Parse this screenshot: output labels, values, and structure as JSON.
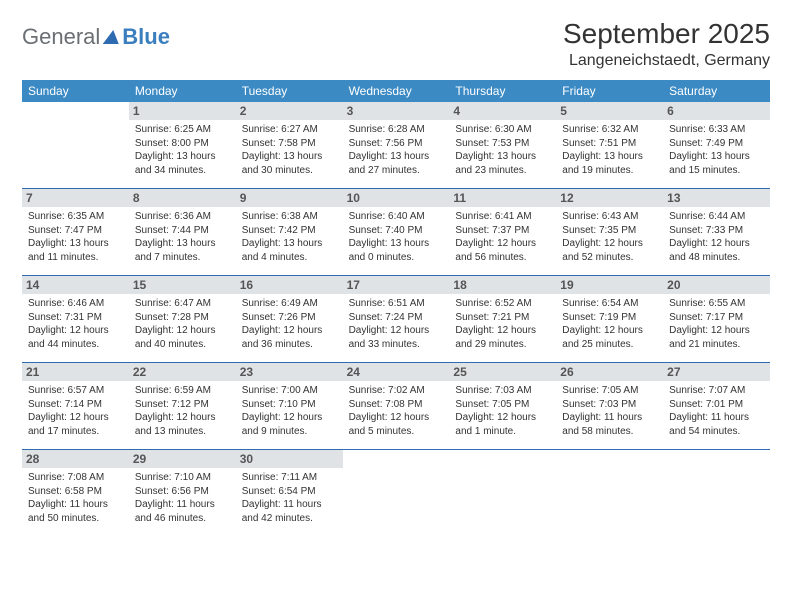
{
  "logo": {
    "general": "General",
    "blue": "Blue"
  },
  "title": "September 2025",
  "location": "Langeneichstaedt, Germany",
  "colors": {
    "header_bg": "#3b8ac4",
    "week_divider": "#2e6bb0",
    "daynum_bg": "#dfe3e6",
    "text": "#333333",
    "logo_gray": "#6b6f73",
    "logo_blue": "#3b7fbf"
  },
  "weekdays": [
    "Sunday",
    "Monday",
    "Tuesday",
    "Wednesday",
    "Thursday",
    "Friday",
    "Saturday"
  ],
  "weeks": [
    [
      null,
      {
        "n": "1",
        "sr": "Sunrise: 6:25 AM",
        "ss": "Sunset: 8:00 PM",
        "dl": "Daylight: 13 hours and 34 minutes."
      },
      {
        "n": "2",
        "sr": "Sunrise: 6:27 AM",
        "ss": "Sunset: 7:58 PM",
        "dl": "Daylight: 13 hours and 30 minutes."
      },
      {
        "n": "3",
        "sr": "Sunrise: 6:28 AM",
        "ss": "Sunset: 7:56 PM",
        "dl": "Daylight: 13 hours and 27 minutes."
      },
      {
        "n": "4",
        "sr": "Sunrise: 6:30 AM",
        "ss": "Sunset: 7:53 PM",
        "dl": "Daylight: 13 hours and 23 minutes."
      },
      {
        "n": "5",
        "sr": "Sunrise: 6:32 AM",
        "ss": "Sunset: 7:51 PM",
        "dl": "Daylight: 13 hours and 19 minutes."
      },
      {
        "n": "6",
        "sr": "Sunrise: 6:33 AM",
        "ss": "Sunset: 7:49 PM",
        "dl": "Daylight: 13 hours and 15 minutes."
      }
    ],
    [
      {
        "n": "7",
        "sr": "Sunrise: 6:35 AM",
        "ss": "Sunset: 7:47 PM",
        "dl": "Daylight: 13 hours and 11 minutes."
      },
      {
        "n": "8",
        "sr": "Sunrise: 6:36 AM",
        "ss": "Sunset: 7:44 PM",
        "dl": "Daylight: 13 hours and 7 minutes."
      },
      {
        "n": "9",
        "sr": "Sunrise: 6:38 AM",
        "ss": "Sunset: 7:42 PM",
        "dl": "Daylight: 13 hours and 4 minutes."
      },
      {
        "n": "10",
        "sr": "Sunrise: 6:40 AM",
        "ss": "Sunset: 7:40 PM",
        "dl": "Daylight: 13 hours and 0 minutes."
      },
      {
        "n": "11",
        "sr": "Sunrise: 6:41 AM",
        "ss": "Sunset: 7:37 PM",
        "dl": "Daylight: 12 hours and 56 minutes."
      },
      {
        "n": "12",
        "sr": "Sunrise: 6:43 AM",
        "ss": "Sunset: 7:35 PM",
        "dl": "Daylight: 12 hours and 52 minutes."
      },
      {
        "n": "13",
        "sr": "Sunrise: 6:44 AM",
        "ss": "Sunset: 7:33 PM",
        "dl": "Daylight: 12 hours and 48 minutes."
      }
    ],
    [
      {
        "n": "14",
        "sr": "Sunrise: 6:46 AM",
        "ss": "Sunset: 7:31 PM",
        "dl": "Daylight: 12 hours and 44 minutes."
      },
      {
        "n": "15",
        "sr": "Sunrise: 6:47 AM",
        "ss": "Sunset: 7:28 PM",
        "dl": "Daylight: 12 hours and 40 minutes."
      },
      {
        "n": "16",
        "sr": "Sunrise: 6:49 AM",
        "ss": "Sunset: 7:26 PM",
        "dl": "Daylight: 12 hours and 36 minutes."
      },
      {
        "n": "17",
        "sr": "Sunrise: 6:51 AM",
        "ss": "Sunset: 7:24 PM",
        "dl": "Daylight: 12 hours and 33 minutes."
      },
      {
        "n": "18",
        "sr": "Sunrise: 6:52 AM",
        "ss": "Sunset: 7:21 PM",
        "dl": "Daylight: 12 hours and 29 minutes."
      },
      {
        "n": "19",
        "sr": "Sunrise: 6:54 AM",
        "ss": "Sunset: 7:19 PM",
        "dl": "Daylight: 12 hours and 25 minutes."
      },
      {
        "n": "20",
        "sr": "Sunrise: 6:55 AM",
        "ss": "Sunset: 7:17 PM",
        "dl": "Daylight: 12 hours and 21 minutes."
      }
    ],
    [
      {
        "n": "21",
        "sr": "Sunrise: 6:57 AM",
        "ss": "Sunset: 7:14 PM",
        "dl": "Daylight: 12 hours and 17 minutes."
      },
      {
        "n": "22",
        "sr": "Sunrise: 6:59 AM",
        "ss": "Sunset: 7:12 PM",
        "dl": "Daylight: 12 hours and 13 minutes."
      },
      {
        "n": "23",
        "sr": "Sunrise: 7:00 AM",
        "ss": "Sunset: 7:10 PM",
        "dl": "Daylight: 12 hours and 9 minutes."
      },
      {
        "n": "24",
        "sr": "Sunrise: 7:02 AM",
        "ss": "Sunset: 7:08 PM",
        "dl": "Daylight: 12 hours and 5 minutes."
      },
      {
        "n": "25",
        "sr": "Sunrise: 7:03 AM",
        "ss": "Sunset: 7:05 PM",
        "dl": "Daylight: 12 hours and 1 minute."
      },
      {
        "n": "26",
        "sr": "Sunrise: 7:05 AM",
        "ss": "Sunset: 7:03 PM",
        "dl": "Daylight: 11 hours and 58 minutes."
      },
      {
        "n": "27",
        "sr": "Sunrise: 7:07 AM",
        "ss": "Sunset: 7:01 PM",
        "dl": "Daylight: 11 hours and 54 minutes."
      }
    ],
    [
      {
        "n": "28",
        "sr": "Sunrise: 7:08 AM",
        "ss": "Sunset: 6:58 PM",
        "dl": "Daylight: 11 hours and 50 minutes."
      },
      {
        "n": "29",
        "sr": "Sunrise: 7:10 AM",
        "ss": "Sunset: 6:56 PM",
        "dl": "Daylight: 11 hours and 46 minutes."
      },
      {
        "n": "30",
        "sr": "Sunrise: 7:11 AM",
        "ss": "Sunset: 6:54 PM",
        "dl": "Daylight: 11 hours and 42 minutes."
      },
      null,
      null,
      null,
      null
    ]
  ]
}
